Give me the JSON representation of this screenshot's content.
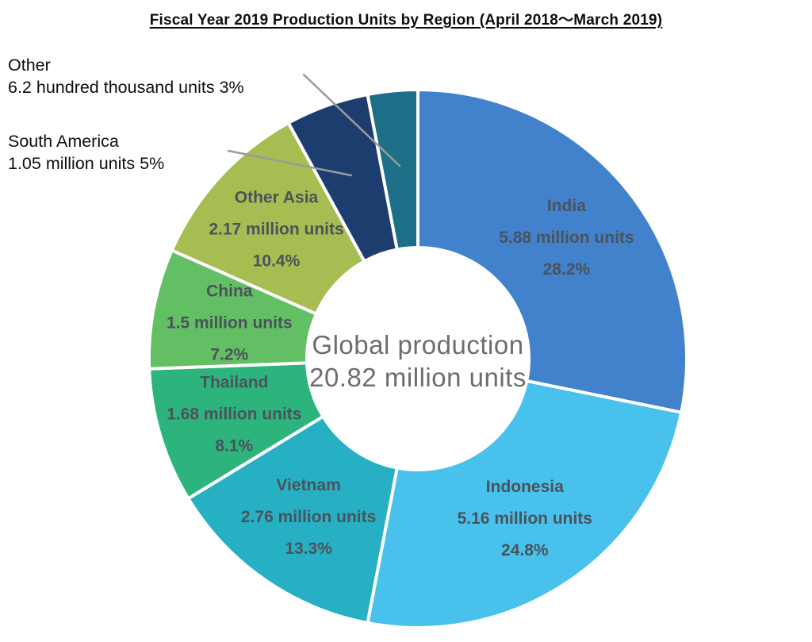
{
  "chart_data": {
    "type": "pie",
    "subtype": "donut",
    "title": "Fiscal Year 2019 Production Units by Region (April 2018～March 2019)",
    "center": {
      "line1": "Global production",
      "line2": "20.82 million units"
    },
    "total_million_units": 20.82,
    "legend_position": "labels-on-slices",
    "slices": [
      {
        "id": "india",
        "label": "India",
        "units_label": "5.88 million units",
        "units_millions": 5.88,
        "percent": 28.2,
        "pct_label": "28.2%",
        "color": "#4282cd",
        "label_placement": "inside"
      },
      {
        "id": "indonesia",
        "label": "Indonesia",
        "units_label": "5.16 million units",
        "units_millions": 5.16,
        "percent": 24.8,
        "pct_label": "24.8%",
        "color": "#48c1ec",
        "label_placement": "inside"
      },
      {
        "id": "vietnam",
        "label": "Vietnam",
        "units_label": "2.76 million units",
        "units_millions": 2.76,
        "percent": 13.3,
        "pct_label": "13.3%",
        "color": "#27b0c4",
        "label_placement": "inside"
      },
      {
        "id": "thailand",
        "label": "Thailand",
        "units_label": "1.68 million units",
        "units_millions": 1.68,
        "percent": 8.1,
        "pct_label": "8.1%",
        "color": "#2db47d",
        "label_placement": "inside"
      },
      {
        "id": "china",
        "label": "China",
        "units_label": "1.5 million units",
        "units_millions": 1.5,
        "percent": 7.2,
        "pct_label": "7.2%",
        "color": "#63bf63",
        "label_placement": "inside"
      },
      {
        "id": "other-asia",
        "label": "Other Asia",
        "units_label": "2.17 million units",
        "units_millions": 2.17,
        "percent": 10.4,
        "pct_label": "10.4%",
        "color": "#a5bd51",
        "label_placement": "inside"
      },
      {
        "id": "south-america",
        "label": "South America",
        "units_label": "1.05 million units",
        "units_millions": 1.05,
        "percent": 5,
        "pct_label": "5%",
        "color": "#1e3d6f",
        "label_placement": "outside"
      },
      {
        "id": "other",
        "label": "Other",
        "units_label": "6.2 hundred thousand units",
        "units_millions": 0.62,
        "percent": 3,
        "pct_label": "3%",
        "color": "#1d6e87",
        "label_placement": "outside"
      }
    ],
    "callouts": [
      {
        "id": "other",
        "line1": "Other",
        "line2": "6.2 hundred thousand units 3%"
      },
      {
        "id": "south-america",
        "line1": "South America",
        "line2": "1.05 million units 5%"
      }
    ],
    "colors": {
      "slice_label_text": "#4a535b",
      "center_text": "#6d6d6d",
      "callout_text": "#0e0e0e",
      "leader_line": "#9b9b9b",
      "background": "#ffffff"
    }
  }
}
